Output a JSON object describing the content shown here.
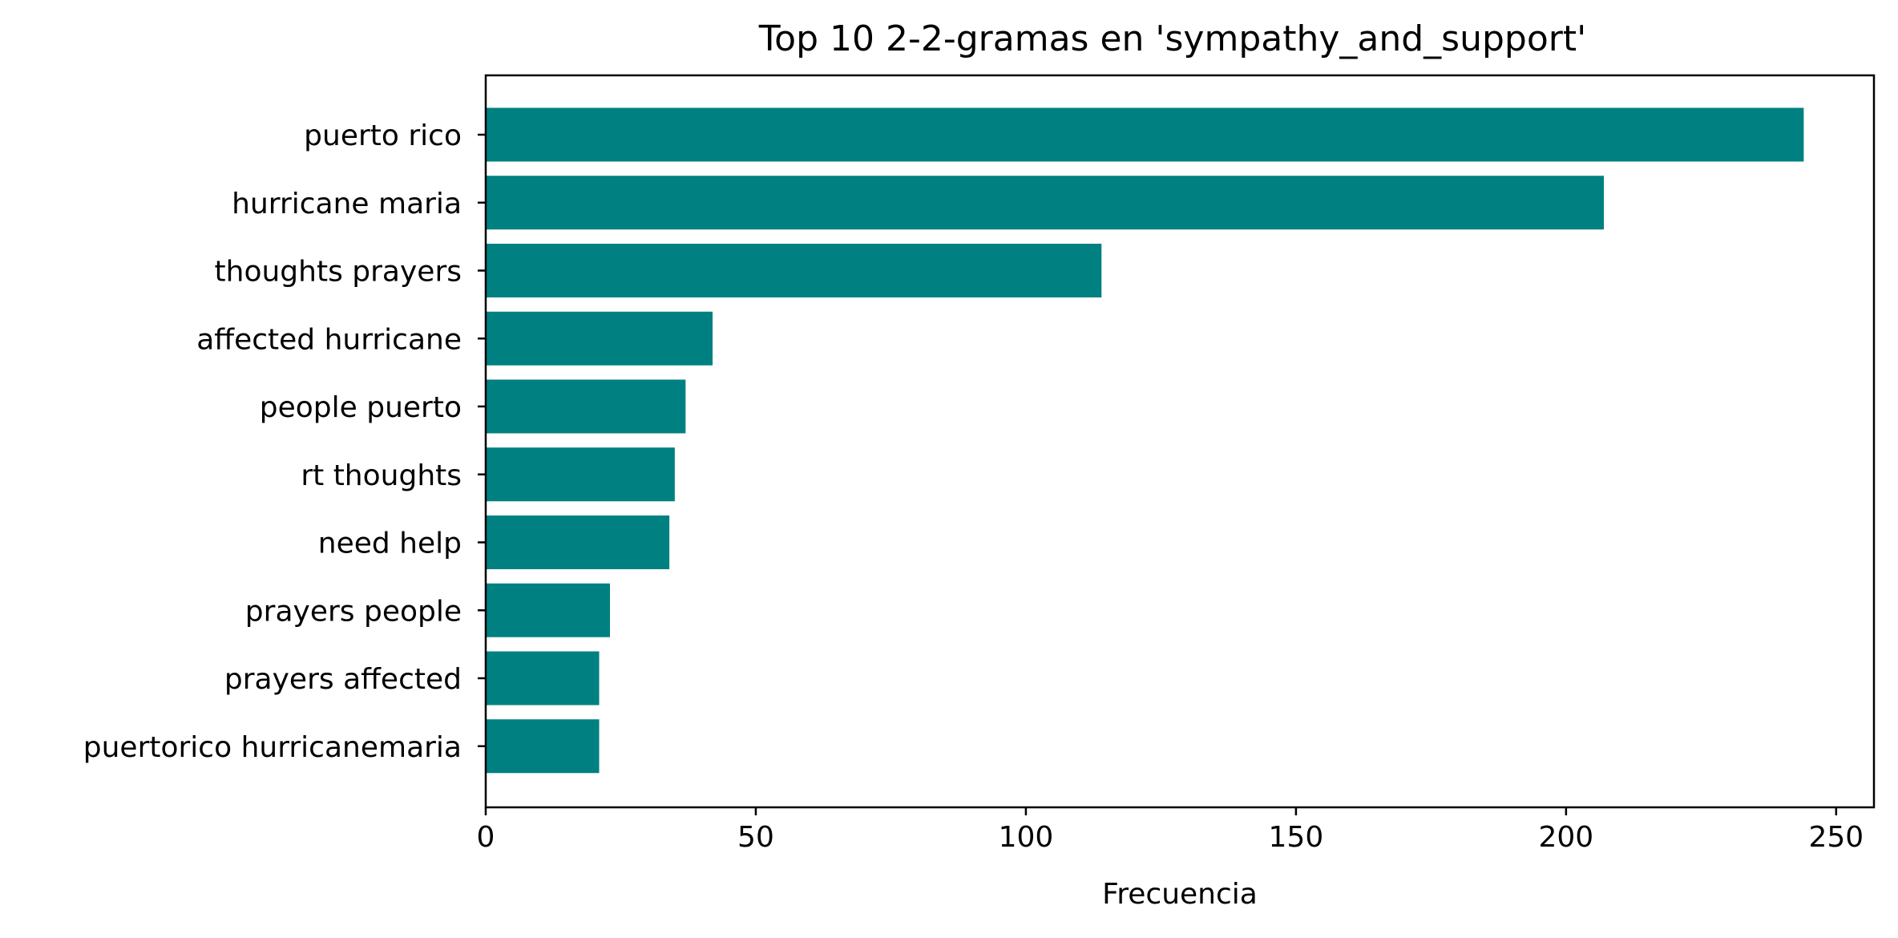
{
  "chart_data": {
    "type": "bar",
    "orientation": "horizontal",
    "title": "Top 10 2-2-gramas en 'sympathy_and_support'",
    "xlabel": "Frecuencia",
    "ylabel": "",
    "categories": [
      "puerto rico",
      "hurricane maria",
      "thoughts prayers",
      "affected hurricane",
      "people puerto",
      "rt thoughts",
      "need help",
      "prayers people",
      "prayers affected",
      "puertorico hurricanemaria"
    ],
    "values": [
      244,
      207,
      114,
      42,
      37,
      35,
      34,
      23,
      21,
      21
    ],
    "xlim": [
      0,
      257
    ],
    "xticks": [
      0,
      50,
      100,
      150,
      200,
      250
    ],
    "bar_color": "#008080",
    "grid": false,
    "legend": "none"
  }
}
